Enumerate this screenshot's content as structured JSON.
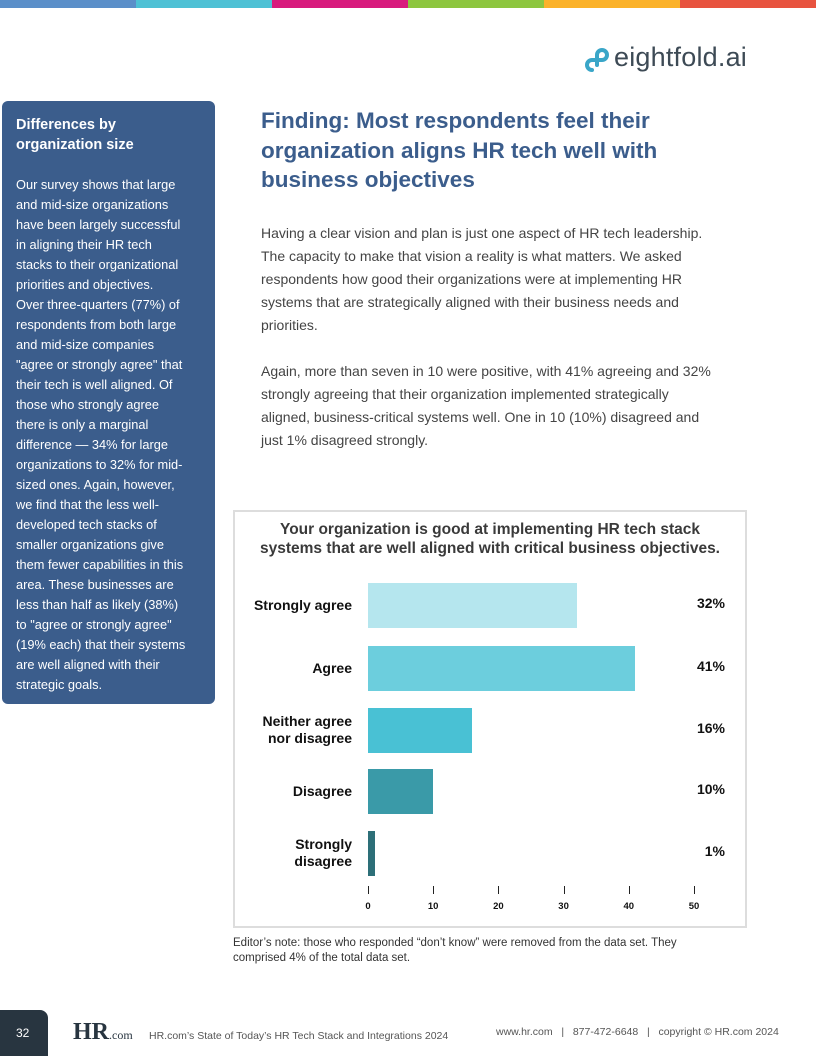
{
  "header": {
    "stripe_colors": [
      "#5b8fc9",
      "#4ec1d5",
      "#d81b7d",
      "#8dc63f",
      "#fbb22a",
      "#e8533f"
    ],
    "logo_text": "eightfold.ai",
    "logo_icon": "infinity-link-icon"
  },
  "sidebar": {
    "title_lines": [
      "Differences by",
      "organization size"
    ],
    "lines": [
      "Our survey shows that large",
      "and mid-size organizations",
      "have been largely successful",
      "in aligning their HR tech",
      "stacks to their organizational",
      "priorities and objectives.",
      "Over three-quarters (77%) of",
      "respondents from both large",
      "and mid-size companies",
      "\"agree or strongly agree\" that",
      "their tech is well aligned. Of",
      "those who strongly agree",
      "there is only a marginal",
      "difference — 34% for large",
      "organizations to 32% for mid-",
      "sized ones. Again, however,",
      "we find that the less well-",
      "developed tech stacks of",
      "smaller organizations give",
      "them fewer capabilities in this",
      "area. These businesses are",
      "less than half as likely (38%)",
      "to \"agree or strongly agree\"",
      "(19% each) that their systems",
      "are well aligned with their",
      "strategic goals."
    ]
  },
  "main": {
    "title_lines": [
      "Finding: Most respondents feel their",
      "organization aligns HR tech well with",
      "business objectives"
    ],
    "para1": [
      "Having a clear vision and plan is just one aspect of HR tech leadership.",
      "The capacity to make that vision a reality is what matters. We asked",
      "respondents how good their organizations were at implementing HR",
      "systems that are strategically aligned with their business needs and",
      "priorities."
    ],
    "para2": [
      "Again, more than seven in 10 were positive, with 41% agreeing and 32%",
      "strongly agreeing that their organization implemented strategically",
      "aligned, business-critical systems well. One in 10 (10%) disagreed and",
      "just 1% disagreed strongly."
    ],
    "note_lines": [
      "Editor’s note: those who responded “don’t know” were removed from the data set. They",
      "comprised 4% of the total data set."
    ]
  },
  "chart_data": {
    "type": "bar",
    "orientation": "horizontal",
    "title_lines": [
      "Your organization is good at implementing HR tech stack",
      "systems that are well aligned with critical business objectives."
    ],
    "categories": [
      [
        "Strongly agree"
      ],
      [
        "Agree"
      ],
      [
        "Neither agree",
        "nor disagree"
      ],
      [
        "Disagree"
      ],
      [
        "Strongly",
        "disagree"
      ]
    ],
    "values": [
      32,
      41,
      16,
      10,
      1
    ],
    "value_labels": [
      "32%",
      "41%",
      "16%",
      "10%",
      "1%"
    ],
    "colors": [
      "#b5e6ee",
      "#6ccedd",
      "#49c1d4",
      "#3a9aa8",
      "#2d6f78"
    ],
    "xlim": [
      0,
      50
    ],
    "xticks": [
      "0",
      "10",
      "20",
      "30",
      "40",
      "50"
    ],
    "grid": false
  },
  "footer": {
    "page_number": "32",
    "logo_text": "HR",
    "logo_suffix": ".com",
    "report_title": "HR.com’s State of Today’s HR Tech Stack and Integrations 2024",
    "contact": "www.hr.com   |   877-472-6648   |   copyright © HR.com 2024"
  }
}
